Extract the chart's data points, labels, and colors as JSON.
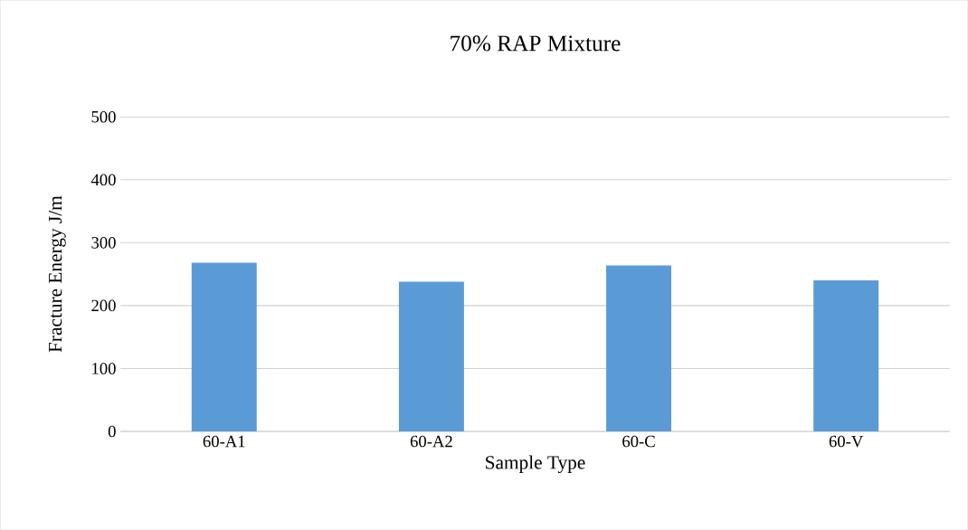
{
  "chart_data": {
    "type": "bar",
    "title": "70% RAP Mixture",
    "xlabel": "Sample Type",
    "ylabel": "Fracture Energy J/m",
    "categories": [
      "60-A1",
      "60-A2",
      "60-C",
      "60-V"
    ],
    "values": [
      268,
      238,
      264,
      240
    ],
    "color": "#5b9bd5",
    "ylim": [
      0,
      500
    ],
    "yticks": [
      0,
      100,
      200,
      300,
      400,
      500
    ],
    "grid": "y"
  }
}
